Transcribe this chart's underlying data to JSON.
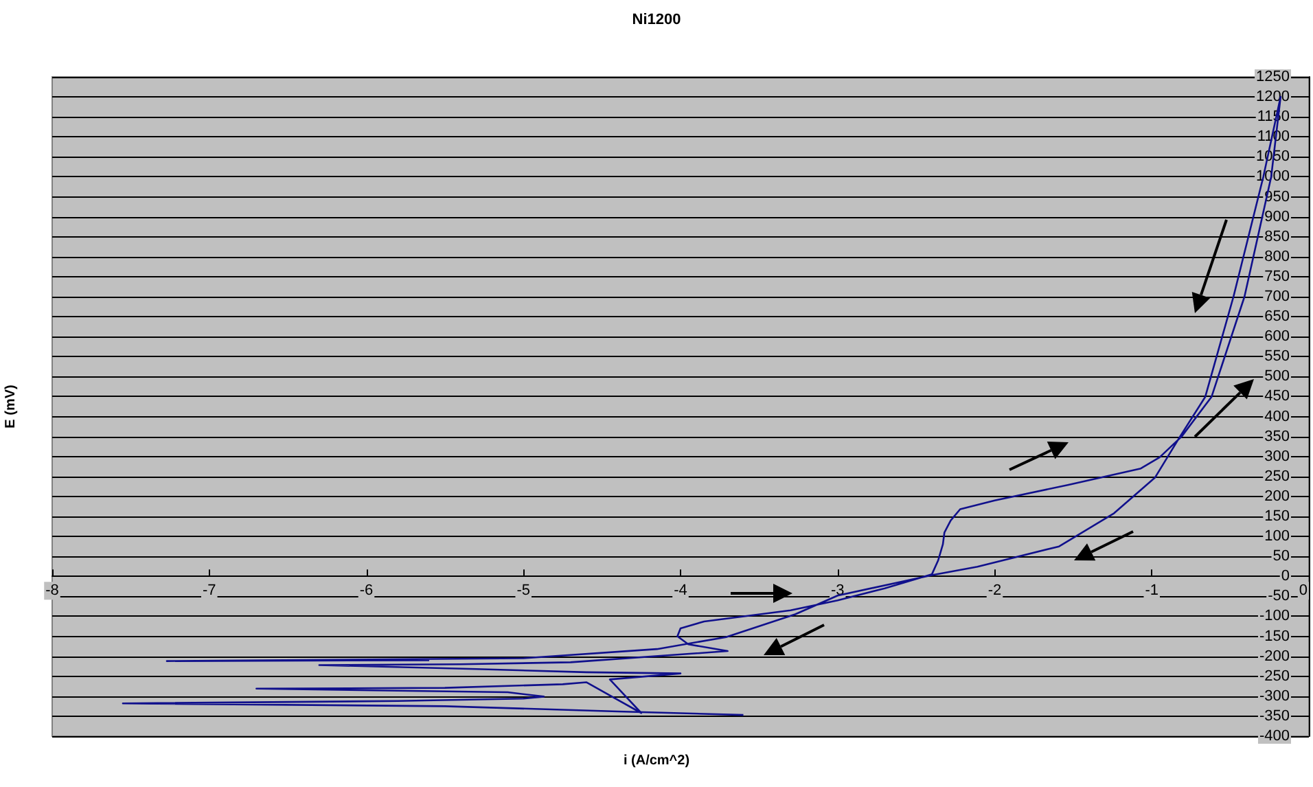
{
  "chart_data": {
    "type": "line",
    "title": "Ni1200",
    "xlabel": "i (A/cm^2)",
    "ylabel": "E (mV)",
    "series": [
      {
        "color": "#10108c",
        "x": [
          -3.6,
          -4.4,
          -5.5,
          -7.55,
          -5.8,
          -5.0,
          -4.87,
          -5.1,
          -6.7,
          -5.5,
          -4.75,
          -4.6,
          -4.25,
          -4.45,
          -4.0,
          -4.6,
          -5.3,
          -6.3,
          -5.4,
          -4.7,
          -3.7,
          -3.95,
          -4.02,
          -4.0,
          -3.85,
          -3.3,
          -3.0,
          -2.7,
          -2.4,
          -2.36,
          -2.33,
          -2.32,
          -2.28,
          -2.22,
          -2.0,
          -1.53,
          -1.07,
          -0.95,
          -0.81,
          -0.62,
          -0.41,
          -0.24,
          -0.18,
          -0.29,
          -0.48,
          -0.66,
          -0.82,
          -0.98,
          -1.24,
          -1.59,
          -2.11,
          -2.4,
          -3.0,
          -3.27,
          -3.71,
          -4.15,
          -5.0,
          -7.27,
          -5.6
        ],
        "values": [
          -347,
          -338,
          -325,
          -318,
          -312,
          -306,
          -301,
          -290,
          -281,
          -279,
          -270,
          -265,
          -342,
          -258,
          -243,
          -240,
          -232,
          -222,
          -220,
          -215,
          -187,
          -170,
          -150,
          -130,
          -113,
          -85,
          -60,
          -30,
          5,
          40,
          80,
          110,
          140,
          168,
          190,
          229,
          270,
          298,
          350,
          449,
          700,
          1000,
          1200,
          1000,
          700,
          449,
          350,
          247,
          158,
          75,
          24,
          3,
          -48,
          -95,
          -152,
          -182,
          -205,
          -212,
          -210
        ]
      }
    ],
    "xlim": [
      -8,
      0
    ],
    "xticks": [
      -8,
      -7,
      -6,
      -5,
      -4,
      -3,
      -2,
      -1,
      0
    ],
    "ylim": [
      -400,
      1250
    ],
    "yticks": [
      -400,
      -350,
      -300,
      -250,
      -200,
      -150,
      -100,
      -50,
      0,
      50,
      100,
      150,
      200,
      250,
      300,
      350,
      400,
      450,
      500,
      550,
      600,
      650,
      700,
      750,
      800,
      850,
      900,
      950,
      1000,
      1050,
      1100,
      1150,
      1200,
      1250
    ],
    "grid": "y",
    "marker": "none",
    "line_style": "solid"
  }
}
